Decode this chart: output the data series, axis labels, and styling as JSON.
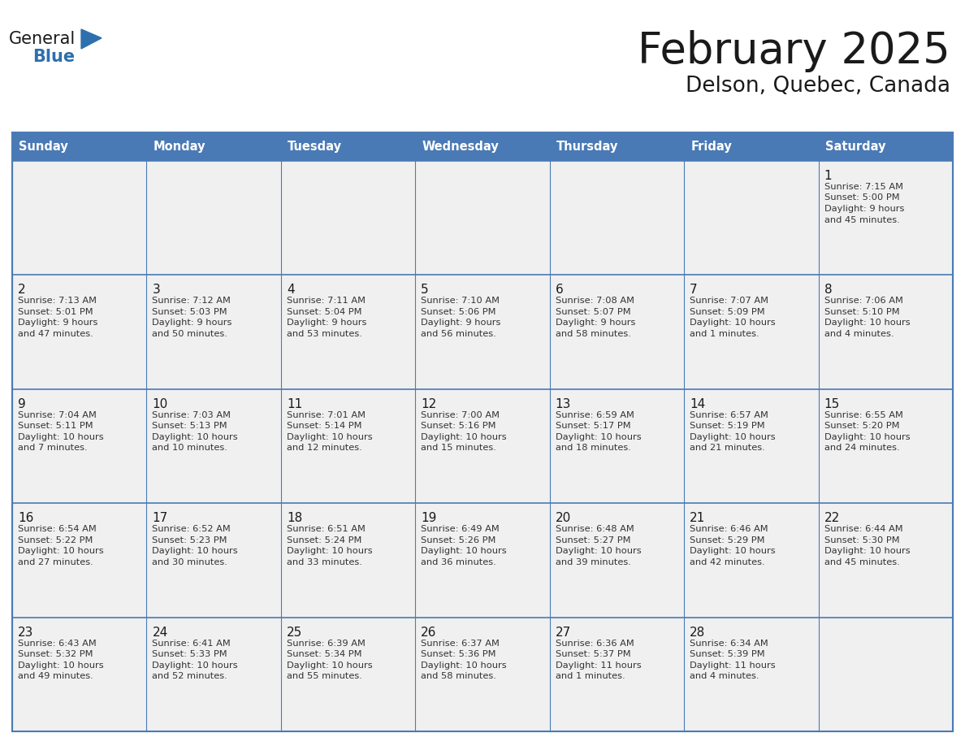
{
  "title": "February 2025",
  "subtitle": "Delson, Quebec, Canada",
  "header_bg": "#4a7ab5",
  "header_text_color": "#FFFFFF",
  "cell_bg": "#f0f0f0",
  "border_color": "#4a7ab5",
  "day_headers": [
    "Sunday",
    "Monday",
    "Tuesday",
    "Wednesday",
    "Thursday",
    "Friday",
    "Saturday"
  ],
  "title_color": "#1a1a1a",
  "subtitle_color": "#1a1a1a",
  "day_number_color": "#1a1a1a",
  "text_color": "#333333",
  "logo_general_color": "#1a1a1a",
  "logo_blue_color": "#2e6fad",
  "days": [
    {
      "day": 1,
      "col": 6,
      "row": 0,
      "sunrise": "7:15 AM",
      "sunset": "5:00 PM",
      "daylight_hours": 9,
      "daylight_minutes": 45
    },
    {
      "day": 2,
      "col": 0,
      "row": 1,
      "sunrise": "7:13 AM",
      "sunset": "5:01 PM",
      "daylight_hours": 9,
      "daylight_minutes": 47
    },
    {
      "day": 3,
      "col": 1,
      "row": 1,
      "sunrise": "7:12 AM",
      "sunset": "5:03 PM",
      "daylight_hours": 9,
      "daylight_minutes": 50
    },
    {
      "day": 4,
      "col": 2,
      "row": 1,
      "sunrise": "7:11 AM",
      "sunset": "5:04 PM",
      "daylight_hours": 9,
      "daylight_minutes": 53
    },
    {
      "day": 5,
      "col": 3,
      "row": 1,
      "sunrise": "7:10 AM",
      "sunset": "5:06 PM",
      "daylight_hours": 9,
      "daylight_minutes": 56
    },
    {
      "day": 6,
      "col": 4,
      "row": 1,
      "sunrise": "7:08 AM",
      "sunset": "5:07 PM",
      "daylight_hours": 9,
      "daylight_minutes": 58
    },
    {
      "day": 7,
      "col": 5,
      "row": 1,
      "sunrise": "7:07 AM",
      "sunset": "5:09 PM",
      "daylight_hours": 10,
      "daylight_minutes": 1
    },
    {
      "day": 8,
      "col": 6,
      "row": 1,
      "sunrise": "7:06 AM",
      "sunset": "5:10 PM",
      "daylight_hours": 10,
      "daylight_minutes": 4
    },
    {
      "day": 9,
      "col": 0,
      "row": 2,
      "sunrise": "7:04 AM",
      "sunset": "5:11 PM",
      "daylight_hours": 10,
      "daylight_minutes": 7
    },
    {
      "day": 10,
      "col": 1,
      "row": 2,
      "sunrise": "7:03 AM",
      "sunset": "5:13 PM",
      "daylight_hours": 10,
      "daylight_minutes": 10
    },
    {
      "day": 11,
      "col": 2,
      "row": 2,
      "sunrise": "7:01 AM",
      "sunset": "5:14 PM",
      "daylight_hours": 10,
      "daylight_minutes": 12
    },
    {
      "day": 12,
      "col": 3,
      "row": 2,
      "sunrise": "7:00 AM",
      "sunset": "5:16 PM",
      "daylight_hours": 10,
      "daylight_minutes": 15
    },
    {
      "day": 13,
      "col": 4,
      "row": 2,
      "sunrise": "6:59 AM",
      "sunset": "5:17 PM",
      "daylight_hours": 10,
      "daylight_minutes": 18
    },
    {
      "day": 14,
      "col": 5,
      "row": 2,
      "sunrise": "6:57 AM",
      "sunset": "5:19 PM",
      "daylight_hours": 10,
      "daylight_minutes": 21
    },
    {
      "day": 15,
      "col": 6,
      "row": 2,
      "sunrise": "6:55 AM",
      "sunset": "5:20 PM",
      "daylight_hours": 10,
      "daylight_minutes": 24
    },
    {
      "day": 16,
      "col": 0,
      "row": 3,
      "sunrise": "6:54 AM",
      "sunset": "5:22 PM",
      "daylight_hours": 10,
      "daylight_minutes": 27
    },
    {
      "day": 17,
      "col": 1,
      "row": 3,
      "sunrise": "6:52 AM",
      "sunset": "5:23 PM",
      "daylight_hours": 10,
      "daylight_minutes": 30
    },
    {
      "day": 18,
      "col": 2,
      "row": 3,
      "sunrise": "6:51 AM",
      "sunset": "5:24 PM",
      "daylight_hours": 10,
      "daylight_minutes": 33
    },
    {
      "day": 19,
      "col": 3,
      "row": 3,
      "sunrise": "6:49 AM",
      "sunset": "5:26 PM",
      "daylight_hours": 10,
      "daylight_minutes": 36
    },
    {
      "day": 20,
      "col": 4,
      "row": 3,
      "sunrise": "6:48 AM",
      "sunset": "5:27 PM",
      "daylight_hours": 10,
      "daylight_minutes": 39
    },
    {
      "day": 21,
      "col": 5,
      "row": 3,
      "sunrise": "6:46 AM",
      "sunset": "5:29 PM",
      "daylight_hours": 10,
      "daylight_minutes": 42
    },
    {
      "day": 22,
      "col": 6,
      "row": 3,
      "sunrise": "6:44 AM",
      "sunset": "5:30 PM",
      "daylight_hours": 10,
      "daylight_minutes": 45
    },
    {
      "day": 23,
      "col": 0,
      "row": 4,
      "sunrise": "6:43 AM",
      "sunset": "5:32 PM",
      "daylight_hours": 10,
      "daylight_minutes": 49
    },
    {
      "day": 24,
      "col": 1,
      "row": 4,
      "sunrise": "6:41 AM",
      "sunset": "5:33 PM",
      "daylight_hours": 10,
      "daylight_minutes": 52
    },
    {
      "day": 25,
      "col": 2,
      "row": 4,
      "sunrise": "6:39 AM",
      "sunset": "5:34 PM",
      "daylight_hours": 10,
      "daylight_minutes": 55
    },
    {
      "day": 26,
      "col": 3,
      "row": 4,
      "sunrise": "6:37 AM",
      "sunset": "5:36 PM",
      "daylight_hours": 10,
      "daylight_minutes": 58
    },
    {
      "day": 27,
      "col": 4,
      "row": 4,
      "sunrise": "6:36 AM",
      "sunset": "5:37 PM",
      "daylight_hours": 11,
      "daylight_minutes": 1
    },
    {
      "day": 28,
      "col": 5,
      "row": 4,
      "sunrise": "6:34 AM",
      "sunset": "5:39 PM",
      "daylight_hours": 11,
      "daylight_minutes": 4
    }
  ]
}
